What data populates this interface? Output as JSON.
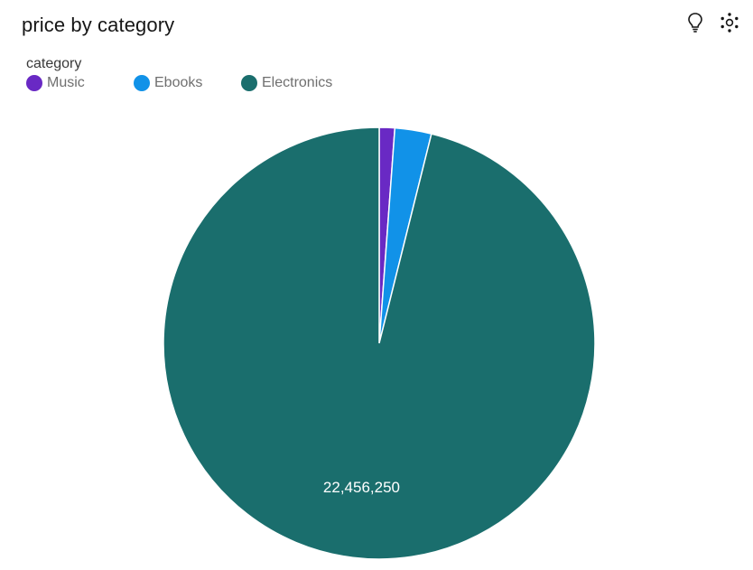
{
  "header": {
    "title": "price by category"
  },
  "toolbar": {
    "icons": [
      "lightbulb-icon",
      "settings-dots-icon"
    ]
  },
  "legend": {
    "title": "category",
    "placement": "top-left"
  },
  "chart_data": {
    "type": "pie",
    "title": "price by category",
    "legend_title": "category",
    "categories": [
      "Music",
      "Ebooks",
      "Electronics"
    ],
    "values": [
      270000,
      640000,
      22456250
    ],
    "colors": [
      "#6929c4",
      "#1192e8",
      "#1a6e6d"
    ],
    "data_labels": [
      "",
      "",
      "22,456,250"
    ],
    "start_angle_deg": 0,
    "direction": "clockwise"
  }
}
